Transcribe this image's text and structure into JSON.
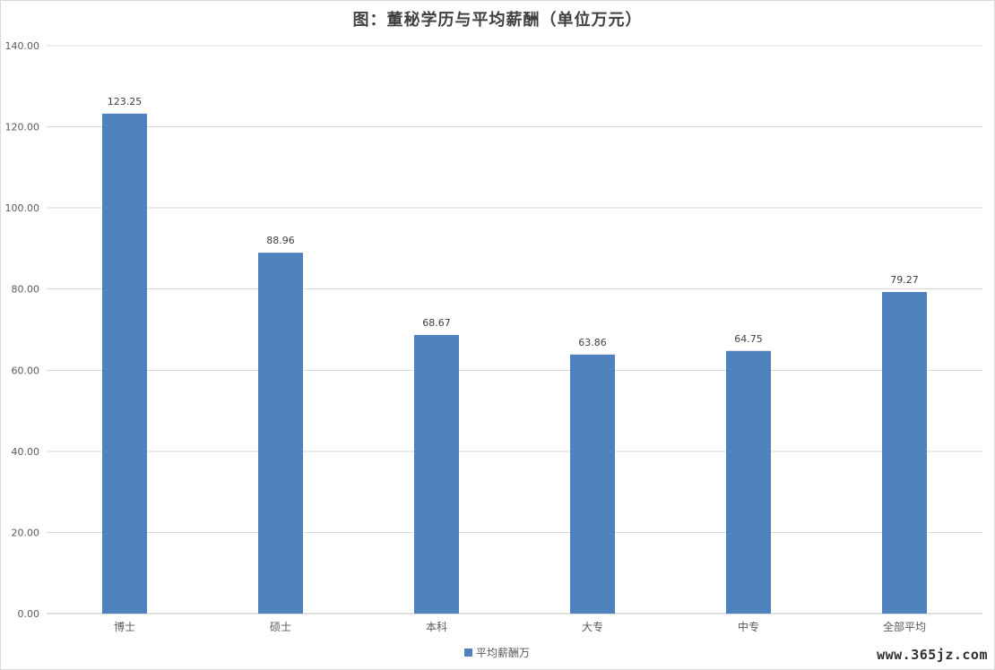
{
  "chart_data": {
    "type": "bar",
    "title": "图：董秘学历与平均薪酬（单位万元）",
    "categories": [
      "博士",
      "硕士",
      "本科",
      "大专",
      "中专",
      "全部平均"
    ],
    "series": [
      {
        "name": "平均薪酬万",
        "values": [
          123.25,
          88.96,
          68.67,
          63.86,
          64.75,
          79.27
        ],
        "value_labels": [
          "123.25",
          "88.96",
          "68.67",
          "63.86",
          "64.75",
          "79.27"
        ],
        "color": "#4f81bd"
      }
    ],
    "ylim": [
      0,
      140
    ],
    "yticks": [
      0,
      20,
      40,
      60,
      80,
      100,
      120,
      140
    ],
    "ytick_labels": [
      "0.00",
      "20.00",
      "40.00",
      "60.00",
      "80.00",
      "100.00",
      "120.00",
      "140.00"
    ],
    "grid": true,
    "legend_position": "bottom"
  },
  "watermark": "www.365jz.com"
}
